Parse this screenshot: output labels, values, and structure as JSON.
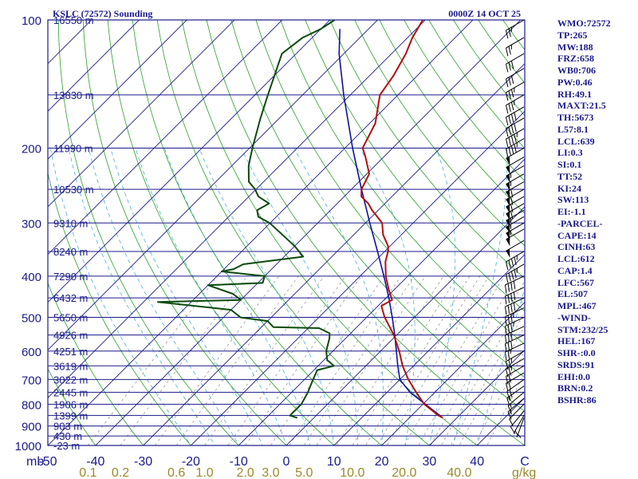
{
  "header": {
    "station": "KSLC (72572) Sounding",
    "time": "0000Z 14 OCT 25"
  },
  "panel": [
    "WMO:72572",
    "TP:265",
    "MW:188",
    "FRZ:658",
    "WB0:706",
    "PW:0.46",
    "RH:49.1",
    "MAXT:21.5",
    "TH:5673",
    "L57:8.1",
    "LCL:639",
    "LI:0.3",
    "SI:0.1",
    "TT:52",
    "KI:24",
    "SW:113",
    "EI:-1.1",
    "-PARCEL-",
    "CAPE:14",
    "CINH:63",
    "LCL:612",
    "CAP:1.4",
    "LFC:567",
    "EL:507",
    "MPL:467",
    "-WIND-",
    "STM:232/25",
    "HEL:167",
    "SHR-:0.0",
    "SRDS:91",
    "EHI:0.0",
    "BRN:0.2",
    "BSHR:86"
  ],
  "colors": {
    "frame": "#1a1a8a",
    "isobar": "#1a1a8a",
    "isotherm": "#1a1a8a",
    "dry_adiabat": "#2aa02a",
    "moist_adiabat": "#4cb0d8",
    "mixing_ratio": "#8a8a8a",
    "temperature": "#b01010",
    "dewpoint": "#0b4a0b",
    "parcel": "#1010a0",
    "wind_barb": "#000000"
  },
  "chart_data": {
    "type": "skew-t log-p",
    "xlabel": "C",
    "mixing_ratio_unit": "g/kg",
    "pressure_axis_label": "mb",
    "xlim": [
      -50,
      50
    ],
    "plim": [
      1000,
      100
    ],
    "x_ticks": [
      -50,
      -40,
      -30,
      -20,
      -10,
      0,
      10,
      20,
      30,
      40
    ],
    "x_tick_labels": [
      "-50",
      "-40",
      "-30",
      "-20",
      "-10",
      "0",
      "10",
      "20",
      "30",
      "40"
    ],
    "pressure_labels": [
      {
        "p": 100,
        "text": "100"
      },
      {
        "p": 200,
        "text": "200"
      },
      {
        "p": 300,
        "text": "300"
      },
      {
        "p": 400,
        "text": "400"
      },
      {
        "p": 500,
        "text": "500"
      },
      {
        "p": 600,
        "text": "600"
      },
      {
        "p": 700,
        "text": "700"
      },
      {
        "p": 800,
        "text": "800"
      },
      {
        "p": 900,
        "text": "900"
      },
      {
        "p": 1000,
        "text": "1000"
      }
    ],
    "height_labels": [
      {
        "p": 100,
        "text": "16550 m"
      },
      {
        "p": 150,
        "text": "13830 m"
      },
      {
        "p": 200,
        "text": "11990 m"
      },
      {
        "p": 250,
        "text": "10530 m"
      },
      {
        "p": 300,
        "text": "9310 m"
      },
      {
        "p": 350,
        "text": "8240 m"
      },
      {
        "p": 400,
        "text": "7290 m"
      },
      {
        "p": 450,
        "text": "6432 m"
      },
      {
        "p": 500,
        "text": "5650 m"
      },
      {
        "p": 550,
        "text": "4926 m"
      },
      {
        "p": 600,
        "text": "4251 m"
      },
      {
        "p": 650,
        "text": "3619 m"
      },
      {
        "p": 700,
        "text": "3022 m"
      },
      {
        "p": 750,
        "text": "2445 m"
      },
      {
        "p": 800,
        "text": "1906 m"
      },
      {
        "p": 850,
        "text": "1399 m"
      },
      {
        "p": 900,
        "text": "903 m"
      },
      {
        "p": 950,
        "text": "430 m"
      },
      {
        "p": 1000,
        "text": "-23 m"
      }
    ],
    "isobars_mb": [
      100,
      150,
      200,
      250,
      300,
      350,
      400,
      450,
      500,
      550,
      600,
      650,
      700,
      750,
      800,
      850,
      900,
      950,
      1000
    ],
    "mixing_ratio_lines": [
      0.1,
      0.2,
      0.4,
      0.6,
      1.0,
      1.5,
      2.0,
      3.0,
      4.0,
      5.0,
      6.0,
      8.0,
      10.0,
      12.0,
      14.0,
      16.0,
      20.0,
      24.0,
      28.0,
      32.0,
      36.0,
      40.0,
      48.0,
      56.0
    ],
    "mixing_ratio_labels": [
      {
        "w": 0.1,
        "text": "0.1"
      },
      {
        "w": 0.2,
        "text": "0.2"
      },
      {
        "w": 0.6,
        "text": "0.6"
      },
      {
        "w": 1.0,
        "text": "1.0"
      },
      {
        "w": 2.0,
        "text": "2.0"
      },
      {
        "w": 3.0,
        "text": "3.0"
      },
      {
        "w": 5.0,
        "text": "5.0"
      },
      {
        "w": 10.0,
        "text": "10.0"
      },
      {
        "w": 20.0,
        "text": "20.0"
      },
      {
        "w": 40.0,
        "text": "40.0"
      }
    ],
    "series": [
      {
        "key": "temperature",
        "points": [
          [
            861,
            27.0
          ],
          [
            850,
            25.6
          ],
          [
            800,
            20.3
          ],
          [
            750,
            16.1
          ],
          [
            700,
            11.8
          ],
          [
            650,
            7.7
          ],
          [
            600,
            3.9
          ],
          [
            550,
            -0.6
          ],
          [
            500,
            -6.2
          ],
          [
            470,
            -9.3
          ],
          [
            455,
            -8.3
          ],
          [
            430,
            -11.2
          ],
          [
            400,
            -14.6
          ],
          [
            370,
            -17.7
          ],
          [
            350,
            -19.3
          ],
          [
            340,
            -20.4
          ],
          [
            320,
            -23.8
          ],
          [
            300,
            -26.5
          ],
          [
            280,
            -31.3
          ],
          [
            270,
            -33.5
          ],
          [
            260,
            -36.4
          ],
          [
            250,
            -37.9
          ],
          [
            230,
            -39.5
          ],
          [
            210,
            -43.8
          ],
          [
            200,
            -46.3
          ],
          [
            175,
            -48.8
          ],
          [
            150,
            -53.8
          ],
          [
            135,
            -55.0
          ],
          [
            120,
            -57.0
          ],
          [
            110,
            -59.0
          ],
          [
            100,
            -60.5
          ]
        ]
      },
      {
        "key": "dewpoint",
        "points": [
          [
            861,
            -3.5
          ],
          [
            850,
            -5.5
          ],
          [
            800,
            -5.5
          ],
          [
            750,
            -6.6
          ],
          [
            700,
            -8.2
          ],
          [
            665,
            -9.3
          ],
          [
            650,
            -6.7
          ],
          [
            630,
            -9.3
          ],
          [
            600,
            -11.4
          ],
          [
            560,
            -13.4
          ],
          [
            545,
            -14.4
          ],
          [
            530,
            -17.7
          ],
          [
            527,
            -27.5
          ],
          [
            510,
            -30.0
          ],
          [
            500,
            -36.4
          ],
          [
            480,
            -40.0
          ],
          [
            460,
            -57.0
          ],
          [
            455,
            -40.0
          ],
          [
            440,
            -43.0
          ],
          [
            420,
            -50.0
          ],
          [
            415,
            -39.0
          ],
          [
            400,
            -40.0
          ],
          [
            390,
            -50.0
          ],
          [
            385,
            -48.0
          ],
          [
            375,
            -47.0
          ],
          [
            360,
            -36.0
          ],
          [
            340,
            -40.0
          ],
          [
            320,
            -44.9
          ],
          [
            300,
            -50.1
          ],
          [
            290,
            -53.8
          ],
          [
            280,
            -55.4
          ],
          [
            270,
            -54.3
          ],
          [
            260,
            -58.0
          ],
          [
            250,
            -60.2
          ],
          [
            240,
            -63.1
          ],
          [
            220,
            -66.5
          ],
          [
            200,
            -69.4
          ],
          [
            170,
            -74.0
          ],
          [
            150,
            -77.3
          ],
          [
            120,
            -83.0
          ],
          [
            110,
            -82.0
          ],
          [
            105,
            -80.0
          ],
          [
            100,
            -79.0
          ]
        ]
      },
      {
        "key": "parcel",
        "points": [
          [
            861,
            27.0
          ],
          [
            850,
            25.9
          ],
          [
            800,
            20.5
          ],
          [
            750,
            14.8
          ],
          [
            700,
            10.0
          ],
          [
            650,
            6.7
          ],
          [
            600,
            3.3
          ],
          [
            550,
            -0.4
          ],
          [
            500,
            -4.6
          ],
          [
            450,
            -9.4
          ],
          [
            400,
            -15.0
          ],
          [
            350,
            -21.5
          ],
          [
            300,
            -29.1
          ],
          [
            250,
            -37.9
          ],
          [
            200,
            -48.4
          ],
          [
            150,
            -61.4
          ],
          [
            120,
            -71.0
          ],
          [
            105,
            -76.0
          ]
        ]
      }
    ],
    "wind_barbs": [
      {
        "p": 861,
        "dir": 200,
        "spd": 5
      },
      {
        "p": 850,
        "dir": 210,
        "spd": 5
      },
      {
        "p": 830,
        "dir": 220,
        "spd": 10
      },
      {
        "p": 800,
        "dir": 225,
        "spd": 10
      },
      {
        "p": 775,
        "dir": 230,
        "spd": 15
      },
      {
        "p": 750,
        "dir": 230,
        "spd": 15
      },
      {
        "p": 725,
        "dir": 235,
        "spd": 15
      },
      {
        "p": 700,
        "dir": 235,
        "spd": 20
      },
      {
        "p": 675,
        "dir": 240,
        "spd": 20
      },
      {
        "p": 650,
        "dir": 240,
        "spd": 20
      },
      {
        "p": 625,
        "dir": 240,
        "spd": 25
      },
      {
        "p": 600,
        "dir": 240,
        "spd": 25
      },
      {
        "p": 575,
        "dir": 245,
        "spd": 25
      },
      {
        "p": 550,
        "dir": 245,
        "spd": 30
      },
      {
        "p": 525,
        "dir": 245,
        "spd": 30
      },
      {
        "p": 500,
        "dir": 245,
        "spd": 35
      },
      {
        "p": 475,
        "dir": 245,
        "spd": 35
      },
      {
        "p": 450,
        "dir": 245,
        "spd": 40
      },
      {
        "p": 425,
        "dir": 245,
        "spd": 40
      },
      {
        "p": 400,
        "dir": 245,
        "spd": 40
      },
      {
        "p": 375,
        "dir": 240,
        "spd": 45
      },
      {
        "p": 350,
        "dir": 240,
        "spd": 45
      },
      {
        "p": 330,
        "dir": 240,
        "spd": 50
      },
      {
        "p": 310,
        "dir": 240,
        "spd": 50
      },
      {
        "p": 300,
        "dir": 240,
        "spd": 55
      },
      {
        "p": 290,
        "dir": 240,
        "spd": 55
      },
      {
        "p": 280,
        "dir": 240,
        "spd": 55
      },
      {
        "p": 270,
        "dir": 240,
        "spd": 60
      },
      {
        "p": 260,
        "dir": 240,
        "spd": 60
      },
      {
        "p": 250,
        "dir": 240,
        "spd": 60
      },
      {
        "p": 240,
        "dir": 240,
        "spd": 60
      },
      {
        "p": 230,
        "dir": 240,
        "spd": 55
      },
      {
        "p": 220,
        "dir": 240,
        "spd": 55
      },
      {
        "p": 210,
        "dir": 240,
        "spd": 50
      },
      {
        "p": 200,
        "dir": 240,
        "spd": 50
      },
      {
        "p": 190,
        "dir": 240,
        "spd": 45
      },
      {
        "p": 180,
        "dir": 240,
        "spd": 45
      },
      {
        "p": 170,
        "dir": 240,
        "spd": 40
      },
      {
        "p": 160,
        "dir": 240,
        "spd": 40
      },
      {
        "p": 150,
        "dir": 240,
        "spd": 35
      },
      {
        "p": 140,
        "dir": 240,
        "spd": 35
      },
      {
        "p": 130,
        "dir": 240,
        "spd": 30
      },
      {
        "p": 120,
        "dir": 240,
        "spd": 30
      },
      {
        "p": 110,
        "dir": 240,
        "spd": 25
      },
      {
        "p": 100,
        "dir": 240,
        "spd": 25
      }
    ]
  }
}
